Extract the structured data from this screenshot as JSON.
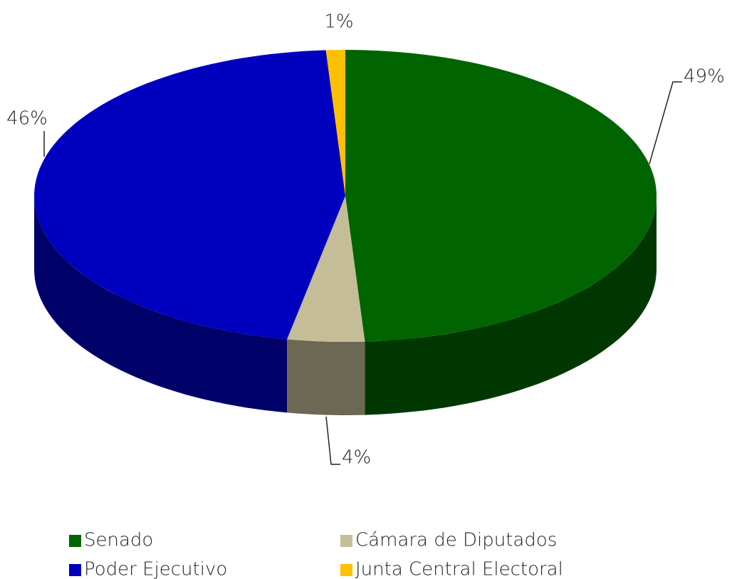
{
  "chart_data": {
    "type": "pie",
    "categories": [
      "Senado",
      "Cámara de Diputados",
      "Poder Ejecutivo",
      "Junta Central Electoral"
    ],
    "values": [
      49,
      4,
      46,
      1
    ],
    "value_labels": [
      "49%",
      "4%",
      "46%",
      "1%"
    ],
    "colors": [
      "#006400",
      "#c4bd97",
      "#0000bf",
      "#ffc000"
    ],
    "legend": "bottom"
  }
}
